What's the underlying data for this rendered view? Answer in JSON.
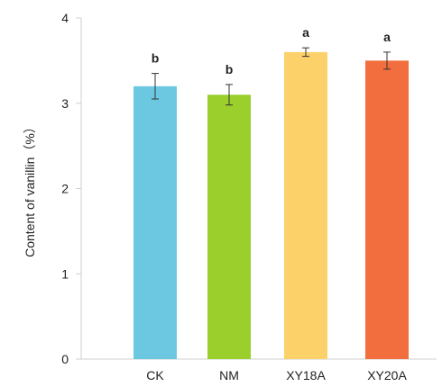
{
  "chart_data": {
    "type": "bar",
    "categories": [
      "CK",
      "NM",
      "XY18A",
      "XY20A"
    ],
    "values": [
      3.2,
      3.1,
      3.6,
      3.5
    ],
    "errors": [
      0.15,
      0.12,
      0.05,
      0.1
    ],
    "significance": [
      "b",
      "b",
      "a",
      "a"
    ],
    "colors": [
      "#6cc8e0",
      "#9bcf2c",
      "#fdd16a",
      "#f36e3e"
    ],
    "ylabel": "Content of vanillin（%）",
    "xlabel": "",
    "ylim": [
      0,
      4
    ],
    "yticks": [
      0,
      1,
      2,
      3,
      4
    ],
    "grid": false
  }
}
